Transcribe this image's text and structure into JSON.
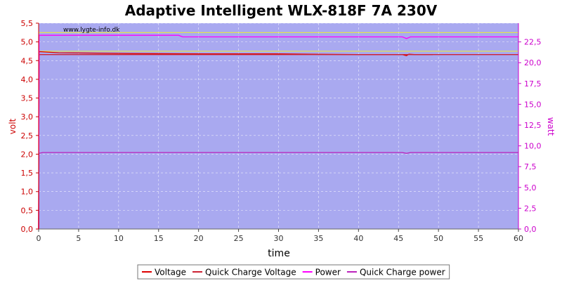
{
  "chart_data": {
    "type": "line",
    "title": "Adaptive Intelligent WLX-818F 7A 230V",
    "watermark": "www.lygte-info.dk",
    "xlabel": "time",
    "ylabel_left": "volt",
    "ylabel_right": "watt",
    "xlim": [
      0,
      60
    ],
    "ylim_left": [
      0,
      5.5
    ],
    "ylim_right": [
      0,
      24.75
    ],
    "x_ticks": [
      "0",
      "5",
      "10",
      "15",
      "20",
      "25",
      "30",
      "35",
      "40",
      "45",
      "50",
      "55",
      "60"
    ],
    "y_left_ticks": [
      "0,0",
      "0,5",
      "1,0",
      "1,5",
      "2,0",
      "2,5",
      "3,0",
      "3,5",
      "4,0",
      "4,5",
      "5,0",
      "5,5"
    ],
    "y_right_ticks": [
      "0,0",
      "2,5",
      "5,0",
      "7,5",
      "10,0",
      "12,5",
      "15,0",
      "17,5",
      "20,0",
      "22,5"
    ],
    "grid": true,
    "legend_position": "bottom",
    "colors": {
      "plot_bg": "#a9a9f0",
      "left_axis": "#cc0000",
      "right_axis": "#cc00cc",
      "voltage": "#dd0000",
      "quick_charge_voltage": "#cc2233",
      "power": "#ff00ff",
      "quick_charge_power": "#bb22bb",
      "yellow_ref": "#e8e840"
    },
    "series": [
      {
        "name": "Voltage",
        "axis": "left",
        "color_key": "voltage",
        "x": [
          0,
          0.05,
          2.5,
          11.5,
          21,
          26,
          30,
          34,
          40,
          45.5,
          46,
          46.3,
          47,
          49.3
        ],
        "y": [
          0,
          4.74,
          4.71,
          4.69,
          4.68,
          4.68,
          4.68,
          4.67,
          4.66,
          4.66,
          4.63,
          4.67,
          4.66,
          4.66
        ]
      },
      {
        "name": "Quick Charge Voltage",
        "axis": "left",
        "color_key": "quick_charge_voltage",
        "x": [
          0,
          0.05,
          10,
          20,
          30,
          40,
          50,
          60
        ],
        "y": [
          0,
          4.66,
          4.66,
          4.66,
          4.66,
          4.66,
          4.66,
          4.66
        ]
      },
      {
        "name": "Power",
        "axis": "right",
        "color_key": "power",
        "x": [
          0,
          0.05,
          10,
          17.5,
          18,
          30,
          45.5,
          46,
          46.5,
          60
        ],
        "y": [
          0,
          23.3,
          23.3,
          23.3,
          23.1,
          23.1,
          23.1,
          22.9,
          23.1,
          23.1
        ]
      },
      {
        "name": "Quick Charge power",
        "axis": "right",
        "color_key": "quick_charge_power",
        "x": [
          0,
          0.05,
          0.5,
          10,
          20,
          30,
          40,
          45.5,
          46,
          46.5,
          60
        ],
        "y": [
          0,
          9.1,
          9.2,
          9.2,
          9.2,
          9.2,
          9.2,
          9.2,
          9.1,
          9.2,
          9.2
        ]
      }
    ],
    "reference_lines": [
      {
        "axis": "left",
        "y": 5.25,
        "color_key": "yellow_ref"
      },
      {
        "axis": "left",
        "y": 4.75,
        "color_key": "yellow_ref"
      }
    ]
  }
}
